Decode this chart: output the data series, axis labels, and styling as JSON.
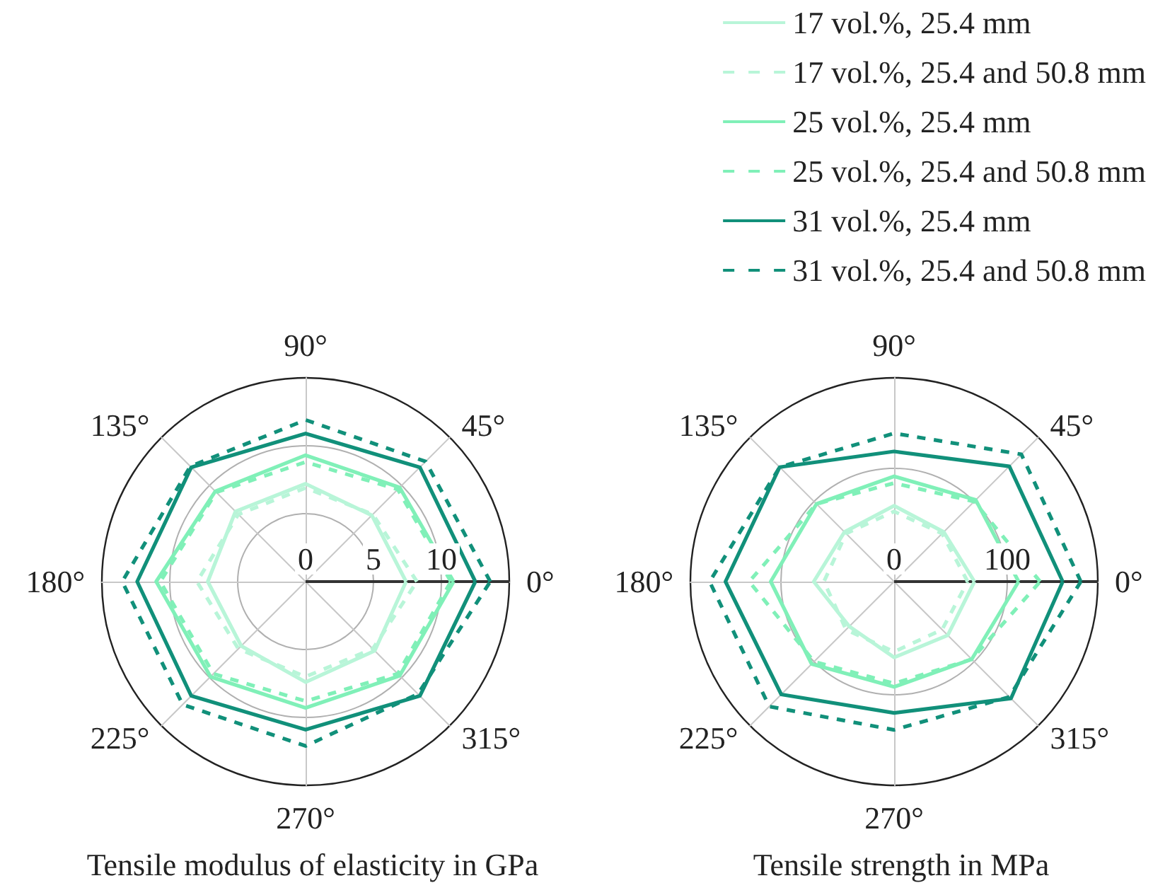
{
  "chart_data": [
    {
      "type": "radar",
      "xlabel": "Tensile modulus of elasticity in GPa",
      "categories": [
        "90°",
        "45°",
        "0°",
        "315°",
        "270°",
        "225°",
        "180°",
        "135°"
      ],
      "ylim": [
        0,
        15
      ],
      "yticks": [
        0,
        5,
        10
      ],
      "grid": true,
      "legend": "top right",
      "series": [
        {
          "name": "17 vol.%, 25.4 mm",
          "color": "#b8f5d8",
          "line_style": "solid",
          "values": [
            7.2,
            6.9,
            7.4,
            7.2,
            7.4,
            6.7,
            7.2,
            7.3
          ]
        },
        {
          "name": "17 vol.%, 25.4 and 50.8 mm",
          "color": "#b8f5d8",
          "line_style": "dashed",
          "values": [
            6.9,
            7.0,
            8.2,
            7.0,
            7.0,
            7.0,
            8.0,
            7.0
          ]
        },
        {
          "name": "25 vol.%, 25.4 mm",
          "color": "#80f0b8",
          "line_style": "solid",
          "values": [
            9.3,
            9.8,
            10.9,
            9.8,
            9.3,
            9.9,
            11.0,
            9.4
          ]
        },
        {
          "name": "25 vol.%, 25.4 and 50.8 mm",
          "color": "#80f0b8",
          "line_style": "dashed",
          "values": [
            8.8,
            9.6,
            10.7,
            9.6,
            8.8,
            9.6,
            10.7,
            9.3
          ]
        },
        {
          "name": "31 vol.%, 25.4 mm",
          "color": "#11907a",
          "line_style": "solid",
          "values": [
            10.9,
            11.9,
            12.5,
            11.9,
            10.9,
            11.9,
            12.4,
            11.9
          ]
        },
        {
          "name": "31 vol.%, 25.4 and 50.8 mm",
          "color": "#11907a",
          "line_style": "dashed",
          "values": [
            11.9,
            12.5,
            13.6,
            11.7,
            12.1,
            12.8,
            13.5,
            12.0
          ]
        }
      ]
    },
    {
      "type": "radar",
      "xlabel": "Tensile strength in MPa",
      "categories": [
        "90°",
        "45°",
        "0°",
        "315°",
        "270°",
        "225°",
        "180°",
        "135°"
      ],
      "ylim": [
        0,
        180
      ],
      "yticks": [
        0,
        100
      ],
      "grid": true,
      "series": [
        {
          "color": "#b8f5d8",
          "line_style": "solid",
          "values": [
            67,
            62,
            71,
            67,
            67,
            56,
            71,
            62
          ]
        },
        {
          "color": "#b8f5d8",
          "line_style": "dashed",
          "values": [
            62,
            60,
            65,
            60,
            62,
            60,
            62,
            60
          ]
        },
        {
          "color": "#80f0b8",
          "line_style": "solid",
          "values": [
            93,
            102,
            110,
            97,
            93,
            103,
            109,
            97
          ]
        },
        {
          "color": "#80f0b8",
          "line_style": "dashed",
          "values": [
            87,
            100,
            129,
            97,
            90,
            100,
            128,
            97
          ]
        },
        {
          "color": "#11907a",
          "line_style": "solid",
          "values": [
            115,
            144,
            149,
            146,
            116,
            141,
            149,
            143
          ]
        },
        {
          "color": "#11907a",
          "line_style": "dashed",
          "values": [
            131,
            159,
            165,
            144,
            131,
            156,
            163,
            143
          ]
        }
      ]
    }
  ]
}
